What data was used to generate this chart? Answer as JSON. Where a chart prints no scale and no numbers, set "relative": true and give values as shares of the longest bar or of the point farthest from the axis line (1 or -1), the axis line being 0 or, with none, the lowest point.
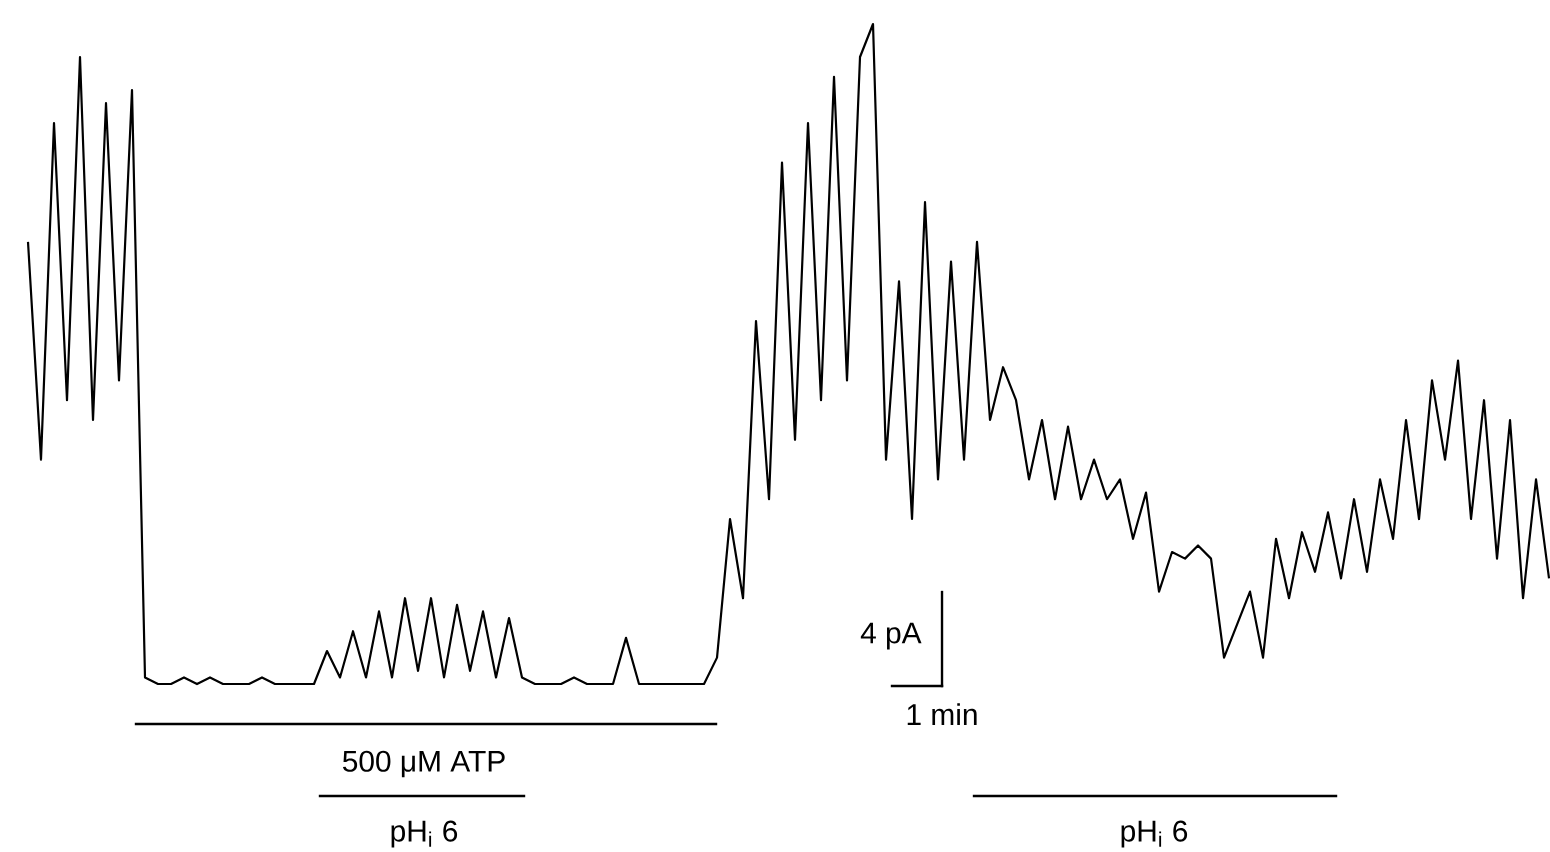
{
  "chart_data": {
    "type": "line",
    "relative": true,
    "categories": [
      null,
      null,
      null,
      null,
      null,
      null,
      null,
      null,
      null,
      null,
      null,
      null,
      null,
      null,
      null,
      null,
      null,
      null,
      null,
      null,
      null,
      null,
      null,
      null,
      null,
      null,
      null,
      null,
      null,
      null,
      null,
      null,
      null,
      null,
      null,
      null,
      null,
      null,
      null,
      null,
      null,
      null,
      null,
      null,
      null,
      null,
      null,
      null,
      null,
      null,
      null,
      null,
      null,
      null,
      null,
      null,
      null,
      null,
      null,
      null,
      null,
      null,
      null,
      null,
      null,
      null,
      null,
      null,
      null,
      null,
      null,
      null,
      null,
      null,
      null,
      null,
      null,
      null,
      null,
      null,
      null,
      null,
      null,
      null,
      null,
      null,
      null,
      null,
      null,
      null,
      null,
      null,
      null,
      null,
      null,
      null,
      null,
      null,
      null,
      null,
      null,
      null,
      null,
      null,
      null,
      null,
      null,
      null,
      null,
      null,
      null,
      null,
      null,
      null,
      null,
      null,
      null,
      null
    ],
    "series": [
      {
        "color": "#000000",
        "values": [
          0.67,
          0.34,
          0.85,
          0.43,
          0.95,
          0.4,
          0.88,
          0.46,
          0.9,
          0.01,
          0,
          0,
          0.01,
          0,
          0.01,
          0,
          0,
          0,
          0.01,
          0,
          0,
          0,
          0,
          0.05,
          0.01,
          0.08,
          0.01,
          0.11,
          0.01,
          0.13,
          0.02,
          0.13,
          0.01,
          0.12,
          0.02,
          0.11,
          0.01,
          0.1,
          0.01,
          0,
          0,
          0,
          0.01,
          0,
          0,
          0,
          0.07,
          0,
          0,
          0,
          0,
          0,
          0,
          0.04,
          0.25,
          0.13,
          0.55,
          0.28,
          0.79,
          0.37,
          0.85,
          0.43,
          0.92,
          0.46,
          0.95,
          1,
          0.34,
          0.61,
          0.25,
          0.73,
          0.31,
          0.64,
          0.34,
          0.67,
          0.4,
          0.48,
          0.43,
          0.31,
          0.4,
          0.28,
          0.39,
          0.28,
          0.34,
          0.28,
          0.31,
          0.22,
          0.29,
          0.14,
          0.2,
          0.19,
          0.21,
          0.19,
          0.04,
          0.09,
          0.14,
          0.04,
          0.22,
          0.13,
          0.23,
          0.17,
          0.26,
          0.16,
          0.28,
          0.17,
          0.31,
          0.22,
          0.4,
          0.25,
          0.46,
          0.34,
          0.49,
          0.25,
          0.43,
          0.19,
          0.4,
          0.13,
          0.31,
          0.16
        ]
      }
    ],
    "annotations": [
      "500 μM ATP",
      "pH$_{i}$ 6",
      "4 pA",
      "1 min",
      "pH$_{i}$ 6"
    ]
  }
}
